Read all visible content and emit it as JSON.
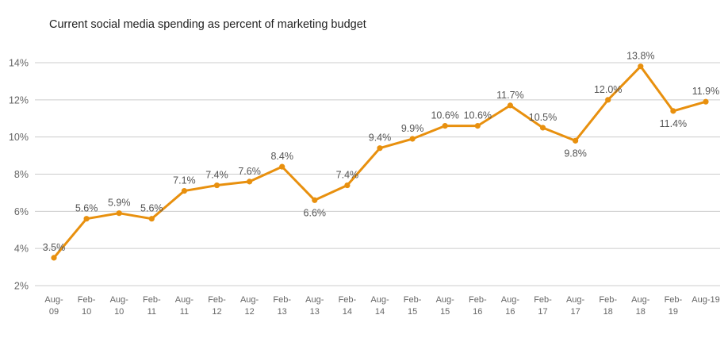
{
  "chart_data": {
    "type": "line",
    "title": "Current social media spending as percent of marketing budget",
    "xlabel": "",
    "ylabel": "",
    "ylim": [
      2,
      14
    ],
    "yticks": [
      "2%",
      "4%",
      "6%",
      "8%",
      "10%",
      "12%",
      "14%"
    ],
    "grid": true,
    "categories": [
      [
        "Aug-",
        "09"
      ],
      [
        "Feb-",
        "10"
      ],
      [
        "Aug-",
        "10"
      ],
      [
        "Feb-",
        "11"
      ],
      [
        "Aug-",
        "11"
      ],
      [
        "Feb-",
        "12"
      ],
      [
        "Aug-",
        "12"
      ],
      [
        "Feb-",
        "13"
      ],
      [
        "Aug-",
        "13"
      ],
      [
        "Feb-",
        "14"
      ],
      [
        "Aug-",
        "14"
      ],
      [
        "Feb-",
        "15"
      ],
      [
        "Aug-",
        "15"
      ],
      [
        "Feb-",
        "16"
      ],
      [
        "Aug-",
        "16"
      ],
      [
        "Feb-",
        "17"
      ],
      [
        "Aug-",
        "17"
      ],
      [
        "Feb-",
        "18"
      ],
      [
        "Aug-",
        "18"
      ],
      [
        "Feb-",
        "19"
      ],
      [
        "Aug-19"
      ]
    ],
    "values": [
      3.5,
      5.6,
      5.9,
      5.6,
      7.1,
      7.4,
      7.6,
      8.4,
      6.6,
      7.4,
      9.4,
      9.9,
      10.6,
      10.6,
      11.7,
      10.5,
      9.8,
      12.0,
      13.8,
      11.4,
      11.9
    ],
    "labels": [
      "3.5%",
      "5.6%",
      "5.9%",
      "5.6%",
      "7.1%",
      "7.4%",
      "7.6%",
      "8.4%",
      "6.6%",
      "7.4%",
      "9.4%",
      "9.9%",
      "10.6%",
      "10.6%",
      "11.7%",
      "10.5%",
      "9.8%",
      "12.0%",
      "13.8%",
      "11.4%",
      "11.9%"
    ],
    "label_position": [
      "above",
      "above",
      "above",
      "above",
      "above",
      "above",
      "above",
      "above",
      "below",
      "above",
      "above",
      "above",
      "above",
      "above",
      "above",
      "above",
      "below",
      "above",
      "above",
      "below",
      "above"
    ],
    "series_color": "#E8900E",
    "grid_color": "#CCCCCC"
  }
}
